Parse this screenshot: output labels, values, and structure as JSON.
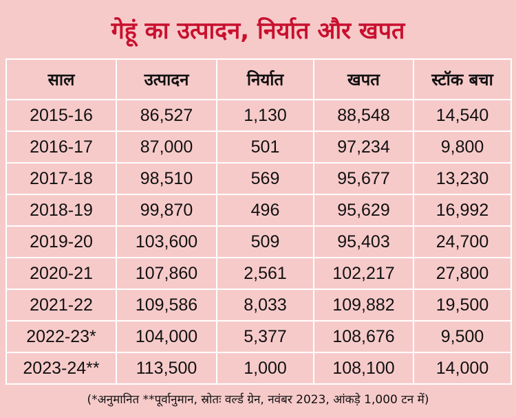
{
  "chart_data": {
    "type": "table",
    "title": "गेहूं का उत्पादन, निर्यात और खपत",
    "columns": [
      "साल",
      "उत्पादन",
      "निर्यात",
      "खपत",
      "स्टॉक बचा"
    ],
    "rows": [
      [
        "2015-16",
        "86,527",
        "1,130",
        "88,548",
        "14,540"
      ],
      [
        "2016-17",
        "87,000",
        "501",
        "97,234",
        "9,800"
      ],
      [
        "2017-18",
        "98,510",
        "569",
        "95,677",
        "13,230"
      ],
      [
        "2018-19",
        "99,870",
        "496",
        "95,629",
        "16,992"
      ],
      [
        "2019-20",
        "103,600",
        "509",
        "95,403",
        "24,700"
      ],
      [
        "2020-21",
        "107,860",
        "2,561",
        "102,217",
        "27,800"
      ],
      [
        "2021-22",
        "109,586",
        "8,033",
        "109,882",
        "19,500"
      ],
      [
        "2022-23*",
        "104,000",
        "5,377",
        "108,676",
        "9,500"
      ],
      [
        "2023-24**",
        "113,500",
        "1,000",
        "108,100",
        "14,000"
      ]
    ],
    "footnote": "(*अनुमानित **पूर्वानुमान, स्रोतः वर्ल्ड ग्रेन, नवंबर 2023, आंकड़े 1,000 टन में)"
  },
  "colors": {
    "background": "#f7caca",
    "title": "#c8102e",
    "gridline": "#ffffff"
  }
}
